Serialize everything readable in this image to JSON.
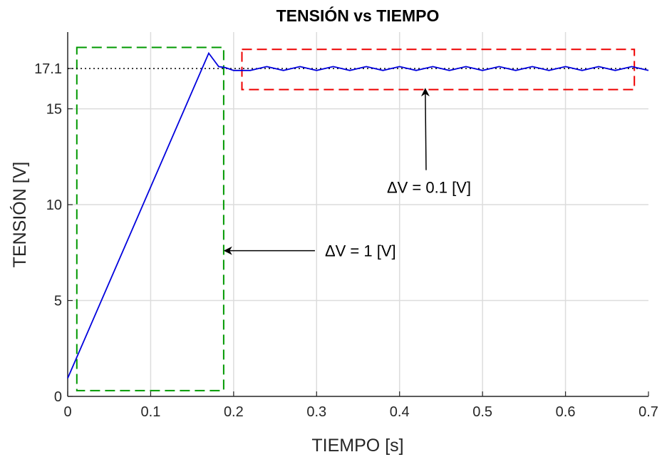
{
  "chart_data": {
    "type": "line",
    "title": "TENSIÓN vs TIEMPO",
    "xlabel": "TIEMPO [s]",
    "ylabel": "TENSIÓN [V]",
    "xlim": [
      0,
      0.7
    ],
    "ylim": [
      0,
      19
    ],
    "grid": true,
    "xticks": [
      "0",
      "0.1",
      "0.2",
      "0.3",
      "0.4",
      "0.5",
      "0.6",
      "0.7"
    ],
    "yticks": [
      "0",
      "5",
      "10",
      "15",
      "17.1"
    ],
    "series": [
      {
        "color": "#0000dd",
        "x": [
          0,
          0.17,
          0.182,
          0.19,
          0.2,
          0.22,
          0.24,
          0.26,
          0.28,
          0.3,
          0.32,
          0.34,
          0.36,
          0.38,
          0.4,
          0.42,
          0.44,
          0.46,
          0.48,
          0.5,
          0.52,
          0.54,
          0.56,
          0.58,
          0.6,
          0.62,
          0.64,
          0.66,
          0.68,
          0.7
        ],
        "y": [
          0.95,
          17.9,
          17.2,
          17.15,
          17.0,
          17.0,
          17.2,
          17.0,
          17.2,
          17.0,
          17.2,
          17.0,
          17.2,
          17.0,
          17.2,
          17.0,
          17.2,
          17.0,
          17.2,
          17.0,
          17.2,
          17.0,
          17.2,
          17.0,
          17.2,
          17.0,
          17.2,
          17.0,
          17.2,
          17.0
        ]
      }
    ],
    "reference_line": {
      "y": 17.1,
      "label": "17.1",
      "style": "dotted"
    },
    "boxes": [
      {
        "x": [
          0.011,
          0.188
        ],
        "y": [
          0.3,
          18.2
        ],
        "color": "#009900",
        "style": "dashed"
      },
      {
        "x": [
          0.21,
          0.683
        ],
        "y": [
          16.0,
          18.1
        ],
        "color": "#ee0000",
        "style": "dashed"
      }
    ],
    "annotations": [
      {
        "text": "ΔV = 1 [V]",
        "arrow_from": [
          0.298,
          7.6
        ],
        "arrow_to": [
          0.19,
          7.6
        ]
      },
      {
        "text": "ΔV = 0.1 [V]",
        "arrow_from": [
          0.432,
          11.8
        ],
        "arrow_to": [
          0.431,
          16.0
        ]
      }
    ]
  }
}
